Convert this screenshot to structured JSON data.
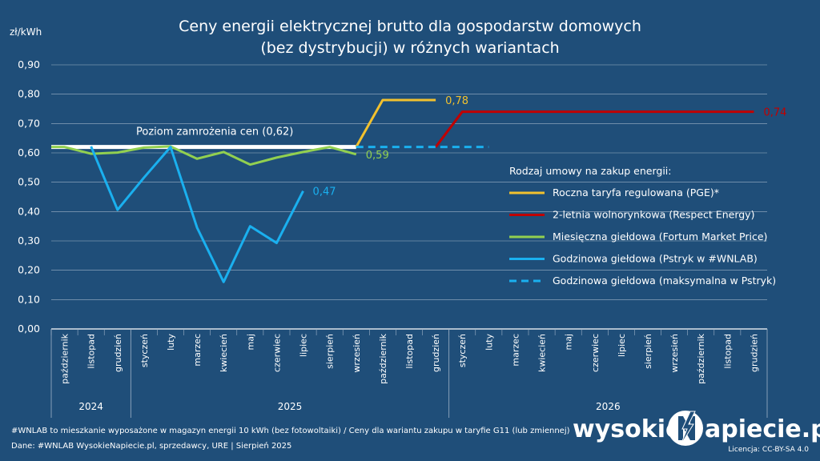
{
  "header": {
    "title_line1": "Ceny energii elektrycznej brutto dla gospodarstw domowych",
    "title_line2": "(bez dystrybucji) w różnych wariantach",
    "unit": "zł/kWh"
  },
  "chart_data": {
    "type": "line",
    "title": "Ceny energii elektrycznej brutto dla gospodarstw domowych (bez dystrybucji) w różnych wariantach",
    "ylabel": "zł/kWh",
    "ylim": [
      0,
      0.9
    ],
    "yticks": [
      "0,00",
      "0,10",
      "0,20",
      "0,30",
      "0,40",
      "0,50",
      "0,60",
      "0,70",
      "0,80",
      "0,90"
    ],
    "grid": true,
    "categories": [
      "październik",
      "listopad",
      "grudzień",
      "styczeń",
      "luty",
      "marzec",
      "kwiecień",
      "maj",
      "czerwiec",
      "lipiec",
      "sierpień",
      "wrzesień",
      "październik",
      "listopad",
      "grudzień",
      "styczeń",
      "luty",
      "marzec",
      "kwiecień",
      "maj",
      "czerwiec",
      "lipiec",
      "sierpień",
      "wrzesień",
      "październik",
      "listopad",
      "grudzień"
    ],
    "years": [
      {
        "label": "2024",
        "start": 0,
        "end": 2
      },
      {
        "label": "2025",
        "start": 3,
        "end": 14
      },
      {
        "label": "2026",
        "start": 15,
        "end": 26
      }
    ],
    "freeze": {
      "label": "Poziom zamrożenia cen (0,62)",
      "value": 0.62,
      "from": -0.5,
      "to": 11
    },
    "series": [
      {
        "name": "Roczna taryfa regulowana (PGE)*",
        "color": "#f2c12e",
        "dashed": false,
        "points": [
          [
            11,
            0.62
          ],
          [
            12,
            0.78
          ],
          [
            13,
            0.78
          ],
          [
            14,
            0.78
          ]
        ],
        "label": "0,78",
        "label_index": 14
      },
      {
        "name": "2-letnia wolnorynkowa (Respect Energy)",
        "color": "#c00000",
        "dashed": false,
        "points": [
          [
            14,
            0.62
          ],
          [
            15,
            0.74
          ],
          [
            16,
            0.74
          ],
          [
            17,
            0.74
          ],
          [
            18,
            0.74
          ],
          [
            19,
            0.74
          ],
          [
            20,
            0.74
          ],
          [
            21,
            0.74
          ],
          [
            22,
            0.74
          ],
          [
            23,
            0.74
          ],
          [
            24,
            0.74
          ],
          [
            25,
            0.74
          ],
          [
            26,
            0.74
          ]
        ],
        "label": "0,74",
        "label_index": 26
      },
      {
        "name": "Miesięczna giełdowa (Fortum Market Price)",
        "color": "#92d050",
        "dashed": false,
        "points": [
          [
            -0.5,
            0.62
          ],
          [
            0,
            0.62
          ],
          [
            1,
            0.597
          ],
          [
            2,
            0.601
          ],
          [
            3,
            0.618
          ],
          [
            4,
            0.622
          ],
          [
            5,
            0.58
          ],
          [
            6,
            0.603
          ],
          [
            7,
            0.56
          ],
          [
            8,
            0.584
          ],
          [
            9,
            0.603
          ],
          [
            10,
            0.62
          ],
          [
            11,
            0.595
          ]
        ],
        "label": "0,59",
        "label_index": 11
      },
      {
        "name": "Godzinowa giełdowa (Pstryk w #WNLAB)",
        "color": "#1ab0ef",
        "dashed": false,
        "points": [
          [
            1,
            0.622
          ],
          [
            2,
            0.406
          ],
          [
            3,
            0.516
          ],
          [
            4,
            0.62
          ],
          [
            5,
            0.345
          ],
          [
            6,
            0.16
          ],
          [
            7,
            0.35
          ],
          [
            8,
            0.293
          ],
          [
            9,
            0.47
          ]
        ],
        "label": "0,47",
        "label_index": 9
      },
      {
        "name": "Godzinowa giełdowa (maksymalna w Pstryk)",
        "color": "#1ab0ef",
        "dashed": true,
        "points": [
          [
            11,
            0.62
          ],
          [
            12,
            0.62
          ],
          [
            13,
            0.62
          ],
          [
            14,
            0.62
          ],
          [
            15,
            0.62
          ],
          [
            16,
            0.62
          ]
        ],
        "label": "",
        "label_index": 16
      }
    ]
  },
  "legend": {
    "title": "Rodzaj umowy na zakup energii:",
    "items": [
      "Roczna taryfa regulowana (PGE)*",
      "2-letnia wolnorynkowa (Respect Energy)",
      "Miesięczna giełdowa (Fortum Market Price)",
      "Godzinowa giełdowa (Pstryk w #WNLAB)",
      "Godzinowa giełdowa (maksymalna w Pstryk)"
    ]
  },
  "footer": {
    "line1": "#WNLAB to mieszkanie wyposażone w magazyn energii 10 kWh (bez fotowoltaiki)   /   Ceny dla wariantu zakupu w taryfie G11 (lub zmiennej)",
    "line2": "Dane: #WNLAB WysokieNapiecie.pl, sprzedawcy, URE    |   Sierpień 2025",
    "license": "Licencja: CC-BY-SA 4.0",
    "logo_left": "wysokie",
    "logo_right": "apiecie.pl"
  }
}
